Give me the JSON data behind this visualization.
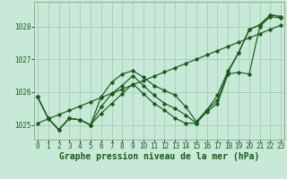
{
  "xlabel": "Graphe pression niveau de la mer (hPa)",
  "x_ticks": [
    0,
    1,
    2,
    3,
    4,
    5,
    6,
    7,
    8,
    9,
    10,
    11,
    12,
    13,
    14,
    15,
    16,
    17,
    18,
    19,
    20,
    21,
    22,
    23
  ],
  "y_ticks": [
    1025,
    1026,
    1027,
    1028
  ],
  "ylim": [
    1024.55,
    1028.75
  ],
  "xlim": [
    -0.3,
    23.3
  ],
  "bg_color": "#c8e8d8",
  "grid_color": "#a0c8b0",
  "line_color": "#1a5c1a",
  "series_linear": [
    1025.05,
    1025.18,
    1025.31,
    1025.44,
    1025.57,
    1025.7,
    1025.83,
    1025.96,
    1026.09,
    1026.22,
    1026.35,
    1026.48,
    1026.61,
    1026.74,
    1026.87,
    1027.0,
    1027.13,
    1027.26,
    1027.39,
    1027.52,
    1027.65,
    1027.78,
    1027.91,
    1028.04
  ],
  "series_zigzag": [
    1025.85,
    1025.2,
    1024.85,
    1025.2,
    1025.15,
    1025.0,
    1025.35,
    1025.65,
    1025.95,
    1026.25,
    1025.95,
    1025.65,
    1025.45,
    1025.2,
    1025.05,
    1025.05,
    1025.4,
    1025.65,
    1026.55,
    1026.6,
    1026.55,
    1028.0,
    1028.3,
    1028.25
  ],
  "series_upper": [
    1025.85,
    1025.2,
    1024.85,
    1025.2,
    1025.15,
    1025.0,
    1025.85,
    1026.3,
    1026.55,
    1026.65,
    1026.45,
    1026.2,
    1026.05,
    1025.9,
    1025.55,
    1025.1,
    1025.45,
    1025.9,
    1026.65,
    1027.2,
    1027.9,
    1028.05,
    1028.35,
    1028.3
  ],
  "series_mid": [
    1025.85,
    1025.2,
    1024.85,
    1025.2,
    1025.15,
    1025.0,
    1025.55,
    1025.95,
    1026.2,
    1026.5,
    1026.2,
    1025.9,
    1025.65,
    1025.5,
    1025.3,
    1025.05,
    1025.45,
    1025.75,
    1026.6,
    1027.2,
    1027.9,
    1028.05,
    1028.35,
    1028.3
  ],
  "tick_fontsize": 5.5,
  "xlabel_fontsize": 7.0
}
